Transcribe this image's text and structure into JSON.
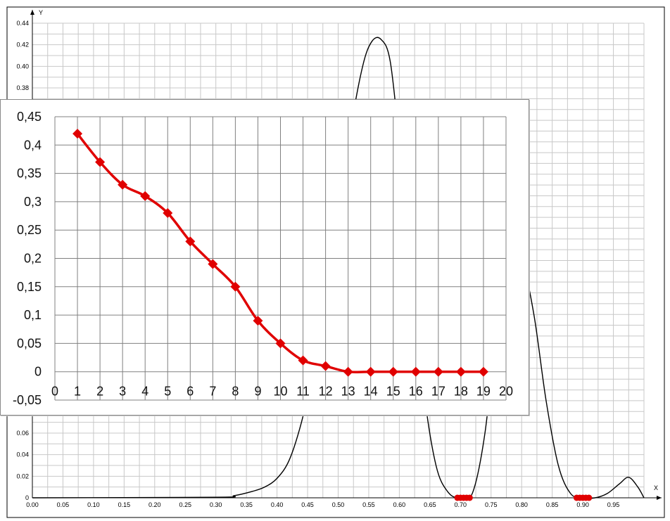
{
  "chart_data": [
    {
      "type": "line",
      "xlabel": "X",
      "ylabel": "Y",
      "xlim": [
        0,
        1.0
      ],
      "ylim": [
        0,
        0.44
      ],
      "x_ticks": [
        "0.00",
        "0.05",
        "0.10",
        "0.15",
        "0.20",
        "0.25",
        "0.30",
        "0.35",
        "0.40",
        "0.45",
        "0.50",
        "0.55",
        "0.60",
        "0.65",
        "0.70",
        "0.75",
        "0.80",
        "0.85",
        "0.90",
        "0.95"
      ],
      "y_ticks": [
        "0",
        "0.02",
        "0.04",
        "0.06",
        "0.38",
        "0.40",
        "0.42",
        "0.44"
      ],
      "grid": true,
      "colors": {
        "line": "#000000",
        "markers": "#e00000",
        "grid": "#c8c8c8"
      },
      "series": [
        {
          "x": [
            0.0,
            0.3,
            0.33,
            0.36,
            0.38,
            0.4,
            0.42,
            0.44,
            0.46,
            0.48,
            0.5,
            0.52,
            0.54,
            0.555,
            0.57,
            0.585,
            0.6,
            0.62,
            0.64,
            0.66,
            0.68,
            0.7,
            0.72,
            0.74,
            0.76,
            0.78,
            0.8,
            0.82,
            0.84,
            0.86,
            0.88,
            0.9,
            0.92,
            0.94,
            0.96,
            0.975,
            0.99,
            1.0
          ],
          "y": [
            0.0,
            0.0005,
            0.002,
            0.006,
            0.01,
            0.018,
            0.035,
            0.07,
            0.12,
            0.19,
            0.26,
            0.34,
            0.4,
            0.423,
            0.425,
            0.405,
            0.33,
            0.22,
            0.1,
            0.03,
            0.005,
            0.0,
            0.005,
            0.06,
            0.16,
            0.22,
            0.22,
            0.17,
            0.09,
            0.03,
            0.004,
            0.0,
            0.0,
            0.004,
            0.013,
            0.019,
            0.01,
            0.0
          ]
        }
      ],
      "highlight_points_x": [
        0.695,
        0.7,
        0.705,
        0.71,
        0.715,
        0.89,
        0.895,
        0.9,
        0.905,
        0.91
      ]
    },
    {
      "type": "line",
      "xlim": [
        0,
        20
      ],
      "ylim": [
        -0.05,
        0.45
      ],
      "x_ticks": [
        "0",
        "1",
        "2",
        "3",
        "4",
        "5",
        "6",
        "7",
        "8",
        "9",
        "10",
        "11",
        "12",
        "13",
        "14",
        "15",
        "16",
        "17",
        "18",
        "19",
        "20"
      ],
      "y_ticks": [
        "-0,05",
        "0",
        "0,05",
        "0,1",
        "0,15",
        "0,2",
        "0,25",
        "0,3",
        "0,35",
        "0,4",
        "0,45"
      ],
      "grid": true,
      "colors": {
        "line": "#e00000",
        "markers": "#e00000",
        "grid": "#808080"
      },
      "series": [
        {
          "x": [
            1,
            2,
            3,
            4,
            5,
            6,
            7,
            8,
            9,
            10,
            11,
            12,
            13,
            14,
            15,
            16,
            17,
            18,
            19
          ],
          "y": [
            0.42,
            0.37,
            0.33,
            0.31,
            0.28,
            0.23,
            0.19,
            0.15,
            0.09,
            0.05,
            0.02,
            0.01,
            0,
            0,
            0,
            0,
            0,
            0,
            0
          ]
        }
      ]
    }
  ]
}
